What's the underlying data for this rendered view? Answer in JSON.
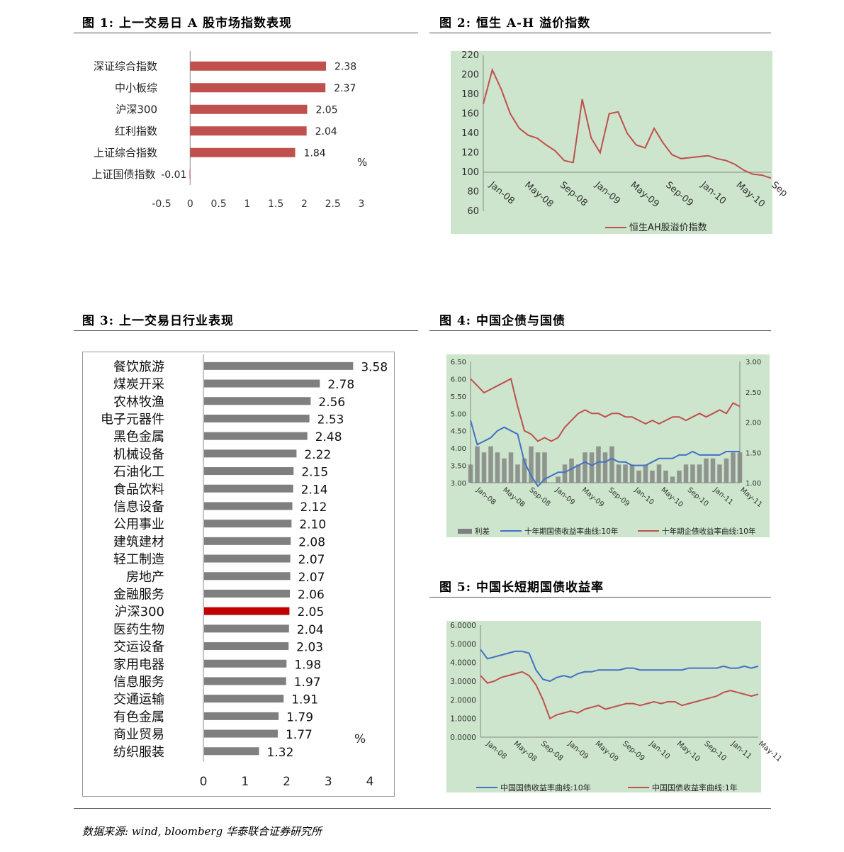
{
  "figures": {
    "fig1": {
      "title": "图 1: 上一交易日 A 股市场指数表现"
    },
    "fig2": {
      "title": "图 2: 恒生 A-H 溢价指数"
    },
    "fig3": {
      "title": "图 3: 上一交易日行业表现"
    },
    "fig4": {
      "title": "图 4: 中国企债与国债"
    },
    "fig5": {
      "title": "图 5: 中国长短期国债收益率"
    }
  },
  "source": "数据来源: wind, bloomberg 华泰联合证券研究所",
  "chart_data": [
    {
      "id": "fig1",
      "type": "bar",
      "orientation": "horizontal",
      "categories": [
        "深证综合指数",
        "中小板综",
        "沪深300",
        "红利指数",
        "上证综合指数",
        "上证国债指数"
      ],
      "values": [
        2.38,
        2.37,
        2.05,
        2.04,
        1.84,
        -0.01
      ],
      "value_labels": [
        "2.38",
        "2.37",
        "2.05",
        "2.04",
        "1.84",
        "-0.01"
      ],
      "xlim": [
        -0.5,
        3
      ],
      "xticks": [
        "-0.5",
        "0",
        "0.5",
        "1",
        "1.5",
        "2",
        "2.5",
        "3"
      ],
      "unit": "%",
      "color": "#c0504d"
    },
    {
      "id": "fig2",
      "type": "line",
      "ylim": [
        60,
        220
      ],
      "yticks": [
        "60",
        "80",
        "100",
        "120",
        "140",
        "160",
        "180",
        "200",
        "220"
      ],
      "xticks": [
        "Jan-08",
        "May-08",
        "Sep-08",
        "Jan-09",
        "May-09",
        "Sep-09",
        "Jan-10",
        "May-10",
        "Sep"
      ],
      "series": [
        {
          "name": "恒生AH股溢价指数",
          "color": "#c0504d",
          "x": [
            0,
            1,
            2,
            3,
            4,
            5,
            6,
            7,
            8,
            9,
            10,
            11,
            12,
            13,
            14,
            15,
            16,
            17,
            18,
            19,
            20,
            21,
            22,
            23,
            24,
            25,
            26,
            27,
            28,
            29,
            30,
            31,
            32
          ],
          "values": [
            170,
            205,
            185,
            160,
            145,
            138,
            135,
            128,
            122,
            112,
            110,
            175,
            135,
            120,
            160,
            162,
            140,
            128,
            125,
            145,
            130,
            118,
            114,
            115,
            116,
            117,
            114,
            112,
            108,
            102,
            98,
            97,
            94
          ]
        }
      ],
      "background": "#cce5cc"
    },
    {
      "id": "fig3",
      "type": "bar",
      "orientation": "horizontal",
      "categories": [
        "餐饮旅游",
        "煤炭开采",
        "农林牧渔",
        "电子元器件",
        "黑色金属",
        "机械设备",
        "石油化工",
        "食品饮料",
        "信息设备",
        "公用事业",
        "建筑建材",
        "轻工制造",
        "房地产",
        "金融服务",
        "沪深300",
        "医药生物",
        "交运设备",
        "家用电器",
        "信息服务",
        "交通运输",
        "有色金属",
        "商业贸易",
        "纺织服装"
      ],
      "values": [
        3.58,
        2.78,
        2.56,
        2.53,
        2.48,
        2.22,
        2.15,
        2.14,
        2.12,
        2.1,
        2.08,
        2.07,
        2.07,
        2.06,
        2.05,
        2.04,
        2.03,
        1.98,
        1.97,
        1.91,
        1.79,
        1.77,
        1.32
      ],
      "value_labels": [
        "3.58",
        "2.78",
        "2.56",
        "2.53",
        "2.48",
        "2.22",
        "2.15",
        "2.14",
        "2.12",
        "2.10",
        "2.08",
        "2.07",
        "2.07",
        "2.06",
        "2.05",
        "2.04",
        "2.03",
        "1.98",
        "1.97",
        "1.91",
        "1.79",
        "1.77",
        "1.32"
      ],
      "highlight": "沪深300",
      "xlim": [
        0,
        4
      ],
      "xticks": [
        "0",
        "1",
        "2",
        "3",
        "4"
      ],
      "unit": "%",
      "color": "#7f7f7f",
      "highlight_color": "#c00000"
    },
    {
      "id": "fig4",
      "type": "line",
      "ylim_left": [
        3.0,
        6.5
      ],
      "yticks_left": [
        "3.00",
        "3.50",
        "4.00",
        "4.50",
        "5.00",
        "5.50",
        "6.00",
        "6.50"
      ],
      "ylim_right": [
        1.0,
        3.0
      ],
      "yticks_right": [
        "1.00",
        "1.50",
        "2.00",
        "2.50",
        "3.00"
      ],
      "xticks": [
        "Jan-08",
        "May-08",
        "Sep-08",
        "Jan-09",
        "May-09",
        "Sep-09",
        "Jan-10",
        "May-10",
        "Sep-10",
        "Jan-11",
        "May-11"
      ],
      "series": [
        {
          "name": "利差",
          "axis": "right",
          "color": "#7f7f7f",
          "x": [
            0,
            1,
            2,
            3,
            4,
            5,
            6,
            7,
            8,
            9,
            10,
            11,
            12,
            13,
            14,
            15,
            16,
            17,
            18,
            19,
            20,
            21,
            22,
            23,
            24,
            25,
            26,
            27,
            28,
            29,
            30,
            31,
            32,
            33,
            34,
            35,
            36,
            37,
            38,
            39,
            40
          ],
          "values": [
            1.3,
            1.6,
            1.5,
            1.6,
            1.5,
            1.4,
            1.5,
            1.3,
            1.4,
            1.6,
            1.5,
            1.5,
            1.0,
            1.1,
            1.3,
            1.4,
            1.3,
            1.5,
            1.5,
            1.6,
            1.5,
            1.6,
            1.3,
            1.3,
            1.3,
            1.2,
            1.3,
            1.2,
            1.3,
            1.2,
            1.1,
            1.2,
            1.3,
            1.3,
            1.3,
            1.4,
            1.4,
            1.3,
            1.4,
            1.5,
            1.5
          ]
        },
        {
          "name": "十年期国债收益率曲线:10年",
          "axis": "left",
          "color": "#4472c4",
          "x": [
            0,
            1,
            2,
            3,
            4,
            5,
            6,
            7,
            8,
            9,
            10,
            11,
            12,
            13,
            14,
            15,
            16,
            17,
            18,
            19,
            20,
            21,
            22,
            23,
            24,
            25,
            26,
            27,
            28,
            29,
            30,
            31,
            32,
            33,
            34,
            35,
            36,
            37,
            38,
            39,
            40
          ],
          "values": [
            4.8,
            4.1,
            4.2,
            4.3,
            4.5,
            4.6,
            4.5,
            4.4,
            3.6,
            3.2,
            2.9,
            3.1,
            3.2,
            3.3,
            3.3,
            3.4,
            3.5,
            3.6,
            3.5,
            3.6,
            3.6,
            3.7,
            3.6,
            3.6,
            3.5,
            3.5,
            3.5,
            3.6,
            3.7,
            3.7,
            3.7,
            3.8,
            3.8,
            3.9,
            3.8,
            3.8,
            3.8,
            3.8,
            3.9,
            3.9,
            3.9
          ]
        },
        {
          "name": "十年期企债收益率曲线:10年",
          "axis": "left",
          "color": "#c0504d",
          "x": [
            0,
            1,
            2,
            3,
            4,
            5,
            6,
            7,
            8,
            9,
            10,
            11,
            12,
            13,
            14,
            15,
            16,
            17,
            18,
            19,
            20,
            21,
            22,
            23,
            24,
            25,
            26,
            27,
            28,
            29,
            30,
            31,
            32,
            33,
            34,
            35,
            36,
            37,
            38,
            39,
            40
          ],
          "values": [
            6.0,
            5.8,
            5.6,
            5.7,
            5.8,
            5.9,
            6.0,
            5.2,
            4.5,
            4.4,
            4.2,
            4.3,
            4.2,
            4.3,
            4.6,
            4.8,
            5.0,
            5.1,
            5.0,
            5.0,
            4.9,
            5.0,
            5.0,
            4.9,
            4.9,
            4.8,
            4.7,
            4.8,
            4.7,
            4.8,
            4.9,
            4.9,
            4.8,
            4.9,
            5.0,
            4.9,
            5.0,
            5.1,
            5.0,
            5.3,
            5.2
          ]
        }
      ],
      "background": "#cce5cc"
    },
    {
      "id": "fig5",
      "type": "line",
      "ylim": [
        0,
        6
      ],
      "yticks": [
        "0.0000",
        "1.0000",
        "2.0000",
        "3.0000",
        "4.0000",
        "5.0000",
        "6.0000"
      ],
      "xticks": [
        "Jan-08",
        "May-08",
        "Sep-08",
        "Jan-09",
        "May-09",
        "Sep-09",
        "Jan-10",
        "May-10",
        "Sep-10",
        "Jan-11",
        "May-11"
      ],
      "series": [
        {
          "name": "中国国债收益率曲线:10年",
          "color": "#4472c4",
          "x": [
            0,
            1,
            2,
            3,
            4,
            5,
            6,
            7,
            8,
            9,
            10,
            11,
            12,
            13,
            14,
            15,
            16,
            17,
            18,
            19,
            20,
            21,
            22,
            23,
            24,
            25,
            26,
            27,
            28,
            29,
            30,
            31,
            32,
            33,
            34,
            35,
            36,
            37,
            38,
            39,
            40
          ],
          "values": [
            4.7,
            4.2,
            4.3,
            4.4,
            4.5,
            4.6,
            4.6,
            4.5,
            3.6,
            3.1,
            3.0,
            3.2,
            3.3,
            3.2,
            3.4,
            3.5,
            3.5,
            3.6,
            3.6,
            3.6,
            3.6,
            3.7,
            3.7,
            3.6,
            3.6,
            3.6,
            3.6,
            3.6,
            3.6,
            3.6,
            3.7,
            3.7,
            3.7,
            3.7,
            3.7,
            3.8,
            3.7,
            3.7,
            3.8,
            3.7,
            3.8
          ]
        },
        {
          "name": "中国国债收益率曲线:1年",
          "color": "#c0504d",
          "x": [
            0,
            1,
            2,
            3,
            4,
            5,
            6,
            7,
            8,
            9,
            10,
            11,
            12,
            13,
            14,
            15,
            16,
            17,
            18,
            19,
            20,
            21,
            22,
            23,
            24,
            25,
            26,
            27,
            28,
            29,
            30,
            31,
            32,
            33,
            34,
            35,
            36,
            37,
            38,
            39,
            40
          ],
          "values": [
            3.3,
            2.9,
            3.0,
            3.2,
            3.3,
            3.4,
            3.5,
            3.3,
            2.8,
            2.0,
            1.0,
            1.2,
            1.3,
            1.4,
            1.3,
            1.5,
            1.6,
            1.7,
            1.5,
            1.6,
            1.7,
            1.8,
            1.8,
            1.7,
            1.8,
            1.9,
            1.8,
            1.9,
            1.9,
            1.7,
            1.8,
            1.9,
            2.0,
            2.1,
            2.2,
            2.4,
            2.5,
            2.4,
            2.3,
            2.2,
            2.3
          ]
        }
      ],
      "background": "#cce5cc"
    }
  ]
}
